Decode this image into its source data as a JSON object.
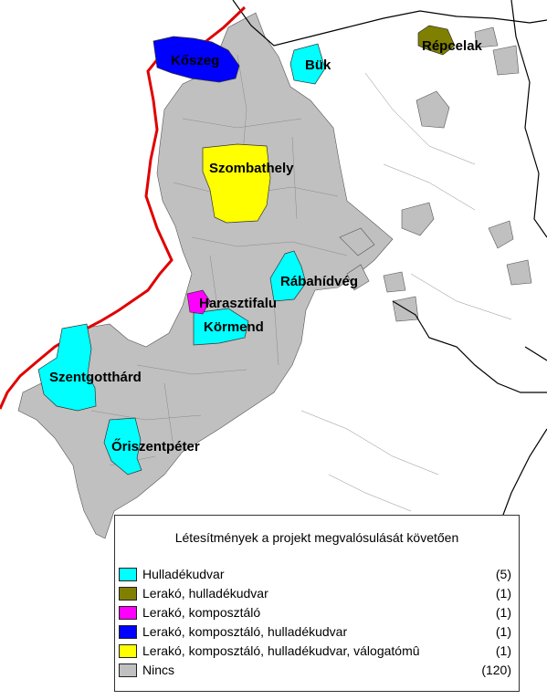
{
  "map": {
    "colors": {
      "hulladekudvar": "#00ffff",
      "lerako_hulladekudvar": "#808000",
      "lerako_komposztalo": "#ff00ff",
      "lerako_komposztalo_hulladekudvar": "#0000ff",
      "lerako_komposztalo_hulladekudvar_valogatomu": "#ffff00",
      "nincs": "#c0c0c0",
      "border": "#e00000",
      "lines": "#000000"
    },
    "towns": [
      {
        "key": "koszeg",
        "label": "Kőszeg"
      },
      {
        "key": "buk",
        "label": "Bük"
      },
      {
        "key": "repcelak",
        "label": "Répcelak"
      },
      {
        "key": "szombathely",
        "label": "Szombathely"
      },
      {
        "key": "rabahidveg",
        "label": "Rábahídvég"
      },
      {
        "key": "harasztifalu",
        "label": "Harasztifalu"
      },
      {
        "key": "kormend",
        "label": "Körmend"
      },
      {
        "key": "szentgotthard",
        "label": "Szentgotthárd"
      },
      {
        "key": "oriszentpeter",
        "label": "Őriszentpéter"
      }
    ]
  },
  "legend": {
    "title": "Létesítmények a projekt megvalósulását követően",
    "items": [
      {
        "label": "Hulladékudvar",
        "count": "(5)",
        "color": "#00ffff"
      },
      {
        "label": "Lerakó, hulladékudvar",
        "count": "(1)",
        "color": "#808000"
      },
      {
        "label": "Lerakó, komposztáló",
        "count": "(1)",
        "color": "#ff00ff"
      },
      {
        "label": "Lerakó, komposztáló, hulladékudvar",
        "count": "(1)",
        "color": "#0000ff"
      },
      {
        "label": "Lerakó, komposztáló, hulladékudvar, válogatómû",
        "count": "(1)",
        "color": "#ffff00"
      },
      {
        "label": "Nincs",
        "count": "(120)",
        "color": "#c0c0c0"
      }
    ]
  }
}
